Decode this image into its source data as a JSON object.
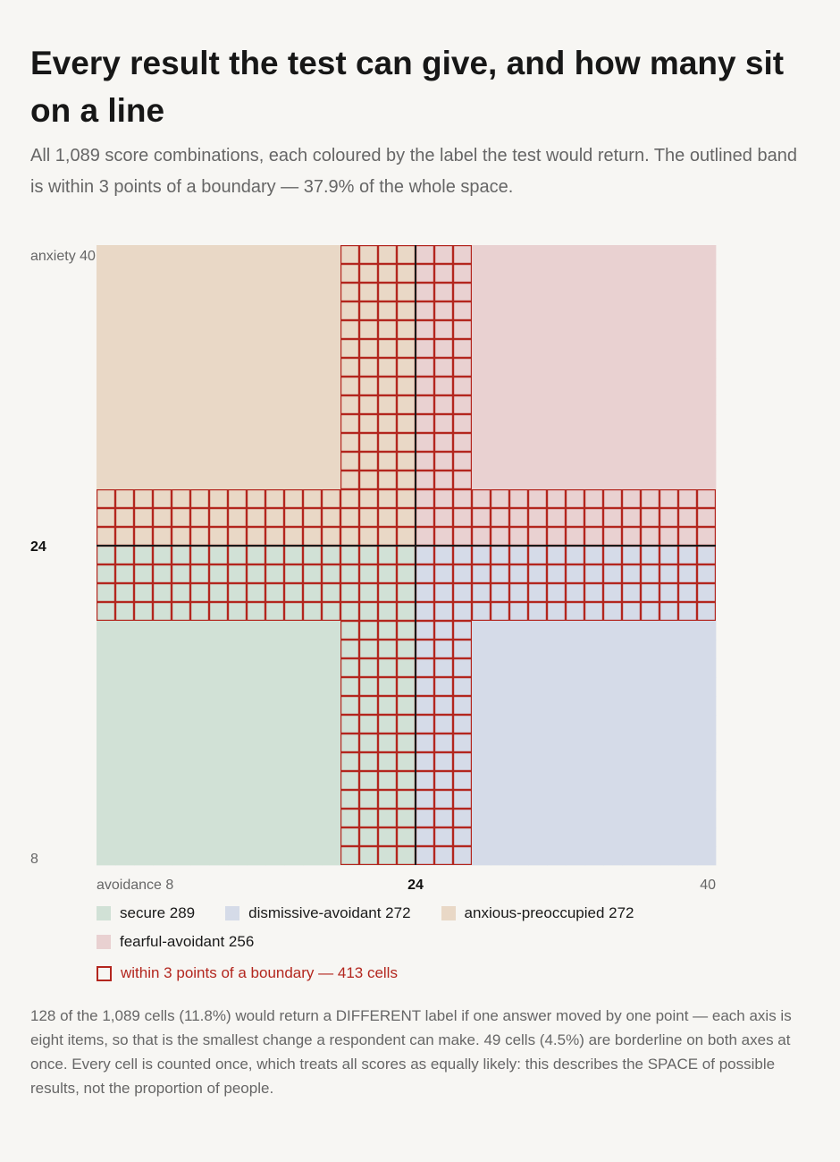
{
  "title": "Every result the test can give, and how many sit on a line",
  "subtitle": "All 1,089 score combinations, each coloured by the label the test would return. The outlined band is within 3 points of a boundary — 37.9% of the whole space.",
  "chart_data": {
    "type": "heatmap",
    "x_axis": {
      "label": "avoidance",
      "min": 8,
      "max": 40,
      "boundary": 24,
      "tick_labels": [
        "8",
        "24",
        "40"
      ]
    },
    "y_axis": {
      "label": "anxiety",
      "min": 8,
      "max": 40,
      "boundary": 24,
      "tick_labels": [
        "8",
        "24",
        "40"
      ]
    },
    "boundary_band_points": 3,
    "categories": [
      {
        "key": "secure",
        "label": "secure",
        "count": 289,
        "color": "#d1e1d6",
        "quadrant": "low-low"
      },
      {
        "key": "dismissive",
        "label": "dismissive-avoidant",
        "count": 272,
        "color": "#d5dbe8",
        "quadrant": "high-avoidance-low-anxiety"
      },
      {
        "key": "anxious",
        "label": "anxious-preoccupied",
        "count": 272,
        "color": "#e9d8c6",
        "quadrant": "low-avoidance-high-anxiety"
      },
      {
        "key": "fearful",
        "label": "fearful-avoidant",
        "count": 256,
        "color": "#e9d1d1",
        "quadrant": "high-high"
      }
    ],
    "band": {
      "label": "within 3 points of a boundary — 413 cells",
      "count": 413,
      "color": "#b3261e"
    },
    "total_cells": 1089,
    "boundary_line_color": "#1a1a1a"
  },
  "note": "128 of the 1,089 cells (11.8%) would return a DIFFERENT label if one answer moved by one point — each axis is eight items, so that is the smallest change a respondent can make. 49 cells (4.5%) are borderline on both axes at once. Every cell is counted once, which treats all scores as equally likely: this describes the SPACE of possible results, not the proportion of people."
}
